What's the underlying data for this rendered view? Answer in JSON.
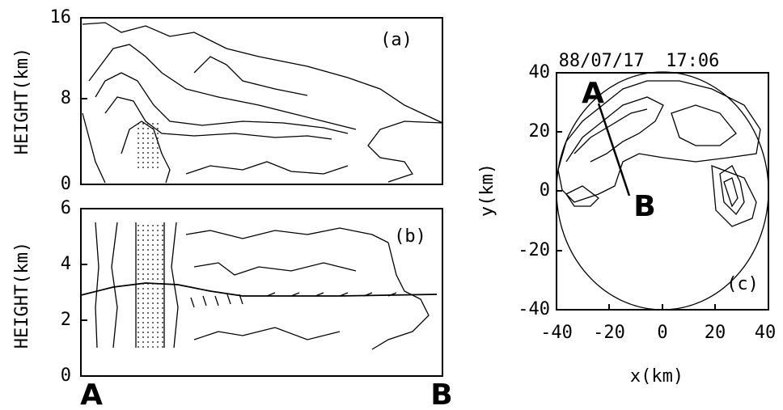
{
  "panels": {
    "a": {
      "label": "(a)",
      "ylabel": "HEIGHT(km)",
      "yticks": [
        "16",
        "8",
        "0"
      ]
    },
    "b": {
      "label": "(b)",
      "ylabel": "HEIGHT(km)",
      "yticks": [
        "6",
        "4",
        "2",
        "0"
      ]
    },
    "c": {
      "label": "(c)",
      "title": "88/07/17  17:06",
      "xlabel": "x(km)",
      "ylabel": "y(km)",
      "xticks": [
        "-40",
        "-20",
        "0",
        "20",
        "40"
      ],
      "yticks": [
        "40",
        "20",
        "0",
        "-20",
        "-40"
      ],
      "point_a": "A",
      "point_b": "B"
    }
  },
  "section": {
    "start": "A",
    "end": "B"
  }
}
